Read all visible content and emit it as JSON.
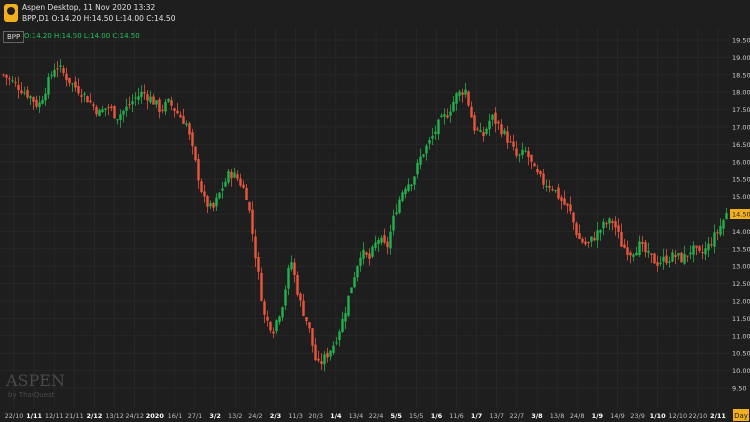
{
  "header": {
    "app_title": "Aspen Desktop, 11 Nov 2020 13:32",
    "symbol_line": "BPP,D1  O:14.20 H:14.50 L:14.00 C:14.50",
    "logo_text": "ASPEN"
  },
  "legend": {
    "symbol": "BPP",
    "ohlc": "O:14.20 H:14.50 L:14.00 C:14.50"
  },
  "watermark": {
    "brand": "ASPEN",
    "sub": "by ThaiQuest"
  },
  "colors": {
    "up": "#22b14c",
    "down": "#e8563e",
    "background": "#1e1e1e",
    "grid": "#2c2c2c",
    "price_tag": "#f2b01e"
  },
  "chart_data": {
    "type": "candlestick",
    "symbol": "BPP",
    "timeframe": "D1",
    "last_price": "14.50",
    "ylim": [
      9.5,
      19.5
    ],
    "y_ticks": [
      "19.50",
      "19.00",
      "18.50",
      "18.00",
      "17.50",
      "17.00",
      "16.50",
      "16.00",
      "15.50",
      "15.00",
      "14.50",
      "14.00",
      "13.50",
      "13.00",
      "12.50",
      "12.00",
      "11.50",
      "11.00",
      "10.50",
      "10.00",
      "9.50"
    ],
    "x_ticks": [
      "22/10",
      "1/11",
      "12/11",
      "21/11",
      "2/12",
      "13/12",
      "24/12",
      "2020",
      "16/1",
      "27/1",
      "3/2",
      "13/2",
      "24/2",
      "2/3",
      "11/3",
      "20/3",
      "1/4",
      "13/4",
      "22/4",
      "5/5",
      "15/5",
      "1/6",
      "11/6",
      "1/7",
      "13/7",
      "22/7",
      "3/8",
      "13/8",
      "24/8",
      "1/9",
      "14/9",
      "23/9",
      "1/10",
      "12/10",
      "22/10",
      "2/11"
    ],
    "x_unit_label": "Day",
    "close_path": [
      [
        0,
        18.5
      ],
      [
        3,
        18.2
      ],
      [
        6,
        17.9
      ],
      [
        8,
        17.6
      ],
      [
        10,
        18.2
      ],
      [
        12,
        18.8
      ],
      [
        14,
        18.5
      ],
      [
        16,
        18.2
      ],
      [
        18,
        18.0
      ],
      [
        20,
        17.7
      ],
      [
        22,
        17.4
      ],
      [
        24,
        17.6
      ],
      [
        26,
        17.3
      ],
      [
        28,
        17.5
      ],
      [
        30,
        17.8
      ],
      [
        32,
        18.0
      ],
      [
        34,
        17.8
      ],
      [
        36,
        17.5
      ],
      [
        38,
        17.7
      ],
      [
        40,
        17.4
      ],
      [
        42,
        17.1
      ],
      [
        44,
        16.0
      ],
      [
        46,
        14.9
      ],
      [
        48,
        14.6
      ],
      [
        50,
        15.2
      ],
      [
        52,
        15.7
      ],
      [
        54,
        15.5
      ],
      [
        56,
        15.0
      ],
      [
        58,
        13.2
      ],
      [
        60,
        11.5
      ],
      [
        62,
        11.2
      ],
      [
        64,
        11.9
      ],
      [
        66,
        13.2
      ],
      [
        68,
        12.0
      ],
      [
        70,
        11.3
      ],
      [
        72,
        10.1
      ],
      [
        74,
        10.4
      ],
      [
        76,
        10.8
      ],
      [
        78,
        11.5
      ],
      [
        80,
        12.5
      ],
      [
        82,
        13.4
      ],
      [
        84,
        13.2
      ],
      [
        86,
        13.8
      ],
      [
        88,
        13.5
      ],
      [
        90,
        14.6
      ],
      [
        92,
        15.3
      ],
      [
        94,
        15.5
      ],
      [
        96,
        16.2
      ],
      [
        98,
        16.6
      ],
      [
        100,
        17.1
      ],
      [
        102,
        17.4
      ],
      [
        104,
        17.9
      ],
      [
        106,
        18.1
      ],
      [
        108,
        17.0
      ],
      [
        110,
        16.7
      ],
      [
        112,
        17.3
      ],
      [
        114,
        17.0
      ],
      [
        116,
        16.6
      ],
      [
        118,
        16.1
      ],
      [
        120,
        16.3
      ],
      [
        122,
        15.7
      ],
      [
        124,
        15.4
      ],
      [
        126,
        15.3
      ],
      [
        128,
        14.9
      ],
      [
        130,
        14.6
      ],
      [
        132,
        13.8
      ],
      [
        134,
        13.6
      ],
      [
        136,
        13.9
      ],
      [
        138,
        14.2
      ],
      [
        140,
        14.3
      ],
      [
        142,
        13.6
      ],
      [
        144,
        13.4
      ],
      [
        146,
        13.6
      ],
      [
        148,
        13.3
      ],
      [
        150,
        13.1
      ],
      [
        152,
        13.2
      ],
      [
        154,
        13.3
      ],
      [
        156,
        13.2
      ],
      [
        158,
        13.5
      ],
      [
        160,
        13.3
      ],
      [
        162,
        13.6
      ],
      [
        164,
        14.0
      ],
      [
        166,
        14.5
      ]
    ]
  }
}
